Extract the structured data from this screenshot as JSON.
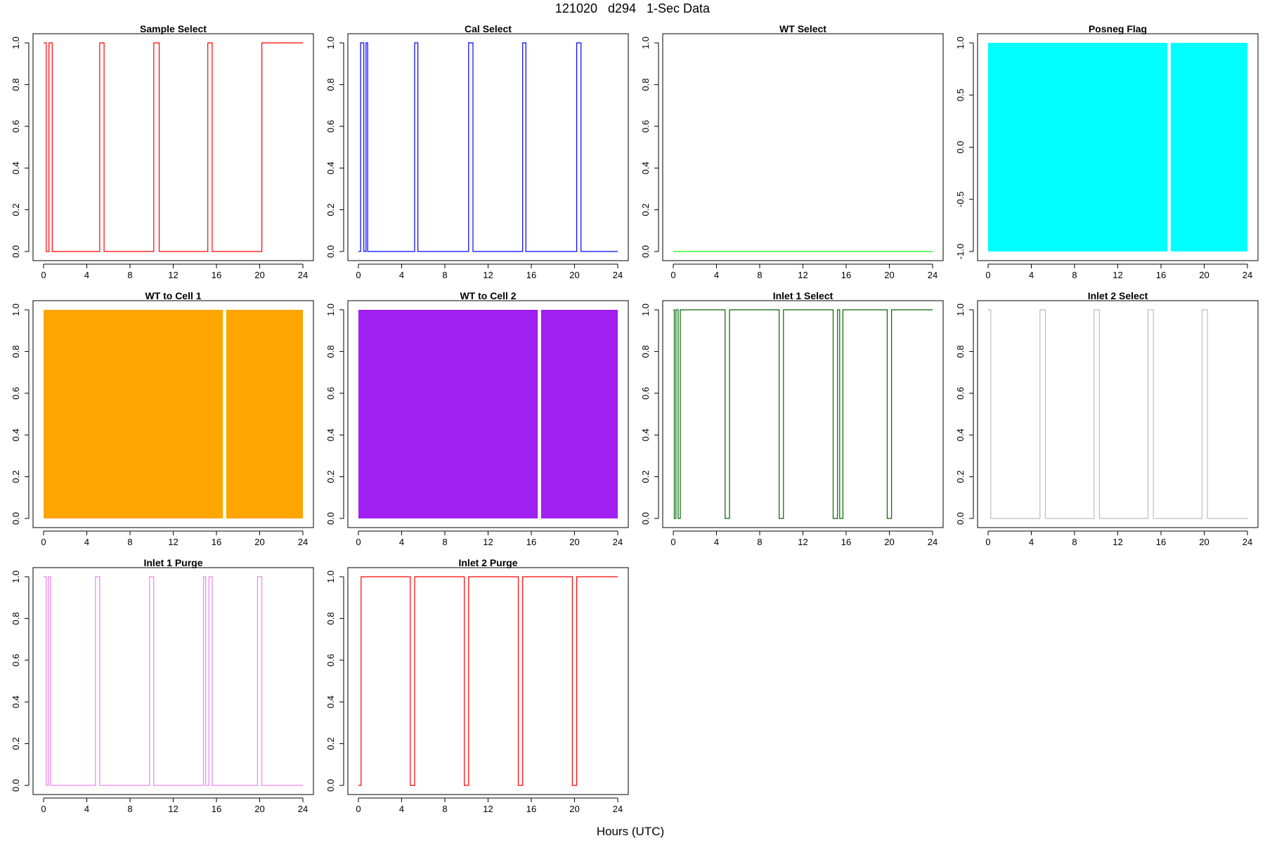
{
  "title": "121020   d294   1-Sec Data",
  "xlabel": "Hours (UTC)",
  "chart_data": [
    {
      "type": "line",
      "title": "Sample Select",
      "color": "#ff0000",
      "xlim": [
        0,
        24
      ],
      "ylim": [
        0,
        1
      ],
      "xticks": [
        "0",
        "4",
        "8",
        "12",
        "16",
        "20",
        "24"
      ],
      "yticks": [
        "0.0",
        "0.2",
        "0.4",
        "0.6",
        "0.8",
        "1.0"
      ],
      "x": [
        0,
        0.25,
        0.25,
        0.5,
        0.5,
        0.8,
        0.8,
        5.2,
        5.2,
        5.6,
        5.6,
        10.2,
        10.2,
        10.7,
        10.7,
        15.2,
        15.2,
        15.6,
        15.6,
        20.2,
        20.2,
        20.6,
        20.6,
        24
      ],
      "y": [
        1,
        1,
        0,
        0,
        1,
        1,
        0,
        0,
        1,
        1,
        0,
        0,
        1,
        1,
        0,
        0,
        1,
        1,
        0,
        0,
        1,
        1,
        1,
        1
      ]
    },
    {
      "type": "line",
      "title": "Cal Select",
      "color": "#0000ff",
      "xlim": [
        0,
        24
      ],
      "ylim": [
        0,
        1
      ],
      "xticks": [
        "0",
        "4",
        "8",
        "12",
        "16",
        "20",
        "24"
      ],
      "yticks": [
        "0.0",
        "0.2",
        "0.4",
        "0.6",
        "0.8",
        "1.0"
      ],
      "x": [
        0,
        0.2,
        0.2,
        0.5,
        0.5,
        0.7,
        0.7,
        0.85,
        0.85,
        5.2,
        5.2,
        5.5,
        5.5,
        10.2,
        10.2,
        10.6,
        10.6,
        15.2,
        15.2,
        15.5,
        15.5,
        20.2,
        20.2,
        20.6,
        20.6,
        24
      ],
      "y": [
        0,
        0,
        1,
        1,
        0,
        0,
        1,
        1,
        0,
        0,
        1,
        1,
        0,
        0,
        1,
        1,
        0,
        0,
        1,
        1,
        0,
        0,
        1,
        1,
        0,
        0
      ]
    },
    {
      "type": "line",
      "title": "WT Select",
      "color": "#00ff00",
      "xlim": [
        0,
        24
      ],
      "ylim": [
        0,
        1
      ],
      "xticks": [
        "0",
        "4",
        "8",
        "12",
        "16",
        "20",
        "24"
      ],
      "yticks": [
        "0.0",
        "0.2",
        "0.4",
        "0.6",
        "0.8",
        "1.0"
      ],
      "x": [
        0,
        24
      ],
      "y": [
        0,
        0
      ]
    },
    {
      "type": "area",
      "title": "Posneg Flag",
      "color": "#00ffff",
      "xlim": [
        0,
        24
      ],
      "ylim": [
        -1,
        1
      ],
      "xticks": [
        "0",
        "4",
        "8",
        "12",
        "16",
        "20",
        "24"
      ],
      "yticks": [
        "-1.0",
        "-0.5",
        "0.0",
        "0.5",
        "1.0"
      ],
      "bands": [
        [
          0,
          16.6
        ],
        [
          16.9,
          24
        ]
      ]
    },
    {
      "type": "area",
      "title": "WT to Cell 1",
      "color": "#ffa500",
      "xlim": [
        0,
        24
      ],
      "ylim": [
        0,
        1
      ],
      "xticks": [
        "0",
        "4",
        "8",
        "12",
        "16",
        "20",
        "24"
      ],
      "yticks": [
        "0.0",
        "0.2",
        "0.4",
        "0.6",
        "0.8",
        "1.0"
      ],
      "bands": [
        [
          0,
          16.6
        ],
        [
          16.9,
          24
        ]
      ]
    },
    {
      "type": "area",
      "title": "WT to Cell 2",
      "color": "#a020f0",
      "xlim": [
        0,
        24
      ],
      "ylim": [
        0,
        1
      ],
      "xticks": [
        "0",
        "4",
        "8",
        "12",
        "16",
        "20",
        "24"
      ],
      "yticks": [
        "0.0",
        "0.2",
        "0.4",
        "0.6",
        "0.8",
        "1.0"
      ],
      "bands": [
        [
          0,
          16.6
        ],
        [
          16.9,
          24
        ]
      ]
    },
    {
      "type": "line",
      "title": "Inlet 1 Select",
      "color": "#006400",
      "xlim": [
        0,
        24
      ],
      "ylim": [
        0,
        1
      ],
      "xticks": [
        "0",
        "4",
        "8",
        "12",
        "16",
        "20",
        "24"
      ],
      "yticks": [
        "0.0",
        "0.2",
        "0.4",
        "0.6",
        "0.8",
        "1.0"
      ],
      "x": [
        0,
        0.1,
        0.1,
        0.25,
        0.25,
        0.45,
        0.45,
        0.65,
        0.65,
        4.8,
        4.8,
        5.2,
        5.2,
        9.8,
        9.8,
        10.2,
        10.2,
        14.8,
        14.8,
        15.2,
        15.2,
        15.4,
        15.4,
        15.7,
        15.7,
        19.8,
        19.8,
        20.2,
        20.2,
        24
      ],
      "y": [
        1,
        1,
        0,
        0,
        1,
        1,
        0,
        0,
        1,
        1,
        0,
        0,
        1,
        1,
        0,
        0,
        1,
        1,
        0,
        0,
        1,
        1,
        0,
        0,
        1,
        1,
        0,
        0,
        1,
        1
      ]
    },
    {
      "type": "line",
      "title": "Inlet 2 Select",
      "color": "#bebebe",
      "xlim": [
        0,
        24
      ],
      "ylim": [
        0,
        1
      ],
      "xticks": [
        "0",
        "4",
        "8",
        "12",
        "16",
        "20",
        "24"
      ],
      "yticks": [
        "0.0",
        "0.2",
        "0.4",
        "0.6",
        "0.8",
        "1.0"
      ],
      "x": [
        0,
        0.25,
        0.25,
        4.8,
        4.8,
        5.3,
        5.3,
        9.8,
        9.8,
        10.3,
        10.3,
        14.8,
        14.8,
        15.3,
        15.3,
        19.8,
        19.8,
        20.3,
        20.3,
        24
      ],
      "y": [
        1,
        1,
        0,
        0,
        1,
        1,
        0,
        0,
        1,
        1,
        0,
        0,
        1,
        1,
        0,
        0,
        1,
        1,
        0,
        0
      ]
    },
    {
      "type": "line",
      "title": "Inlet 1 Purge",
      "color": "#ee82ee",
      "xlim": [
        0,
        24
      ],
      "ylim": [
        0,
        1
      ],
      "xticks": [
        "0",
        "4",
        "8",
        "12",
        "16",
        "20",
        "24"
      ],
      "yticks": [
        "0.0",
        "0.2",
        "0.4",
        "0.6",
        "0.8",
        "1.0"
      ],
      "x": [
        0,
        0.25,
        0.25,
        0.45,
        0.45,
        0.65,
        0.65,
        4.8,
        4.8,
        5.2,
        5.2,
        9.8,
        9.8,
        10.2,
        10.2,
        14.8,
        14.8,
        15.0,
        15.0,
        15.3,
        15.3,
        15.6,
        15.6,
        19.8,
        19.8,
        20.2,
        20.2,
        24
      ],
      "y": [
        1,
        1,
        0,
        0,
        1,
        1,
        0,
        0,
        1,
        1,
        0,
        0,
        1,
        1,
        0,
        0,
        1,
        1,
        0,
        0,
        1,
        1,
        0,
        0,
        1,
        1,
        0,
        0
      ]
    },
    {
      "type": "line",
      "title": "Inlet 2 Purge",
      "color": "#ff0000",
      "xlim": [
        0,
        24
      ],
      "ylim": [
        0,
        1
      ],
      "xticks": [
        "0",
        "4",
        "8",
        "12",
        "16",
        "20",
        "24"
      ],
      "yticks": [
        "0.0",
        "0.2",
        "0.4",
        "0.6",
        "0.8",
        "1.0"
      ],
      "x": [
        0,
        0.25,
        0.25,
        4.8,
        4.8,
        5.2,
        5.2,
        9.8,
        9.8,
        10.2,
        10.2,
        14.8,
        14.8,
        15.2,
        15.2,
        19.8,
        19.8,
        20.2,
        20.2,
        24
      ],
      "y": [
        0,
        0,
        1,
        1,
        0,
        0,
        1,
        1,
        0,
        0,
        1,
        1,
        0,
        0,
        1,
        1,
        0,
        0,
        1,
        1
      ]
    }
  ]
}
